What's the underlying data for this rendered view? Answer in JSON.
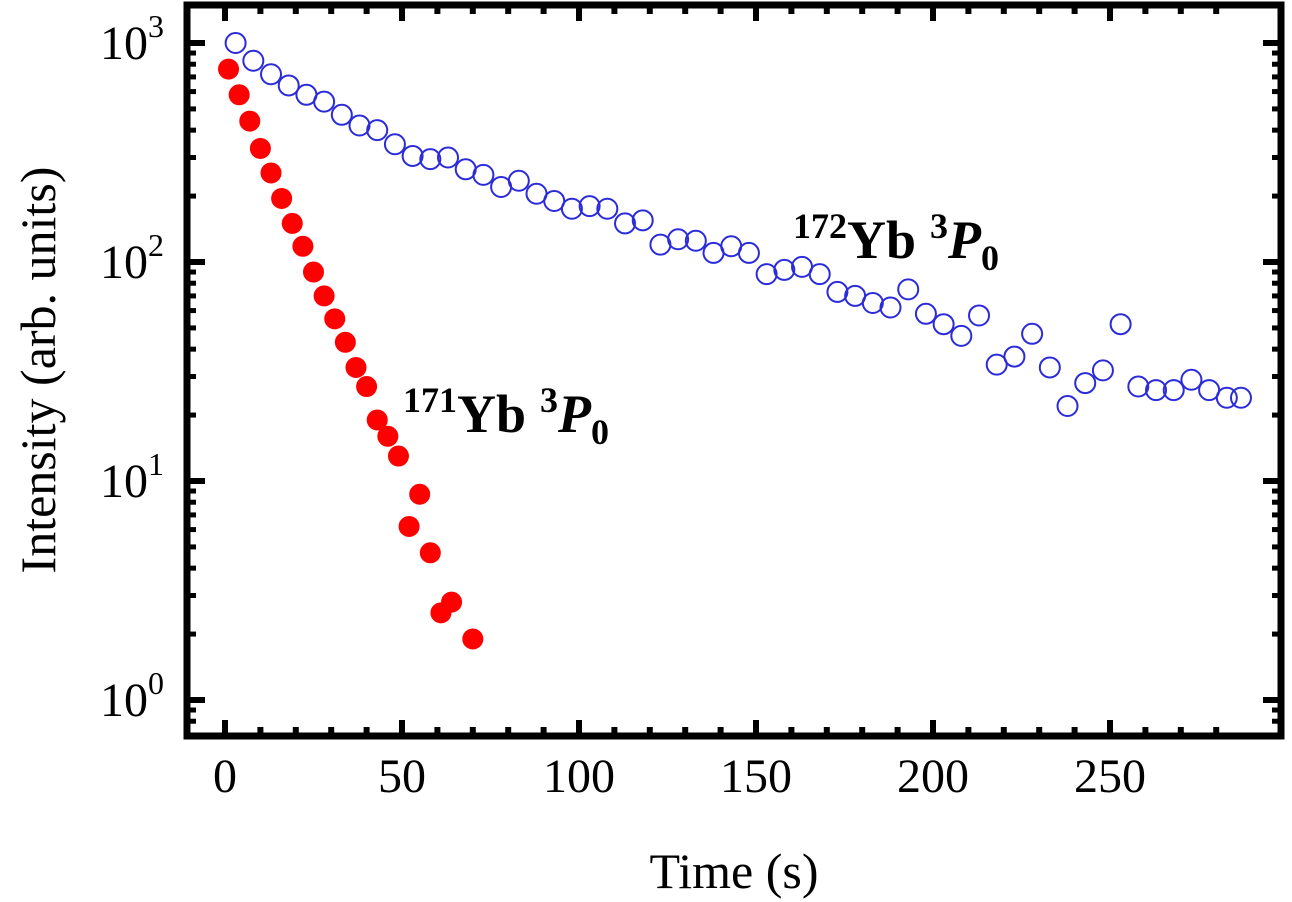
{
  "chart_data": {
    "type": "scatter",
    "title": "",
    "xlabel": "Time (s)",
    "ylabel": "Intensity (arb. units)",
    "xlim": [
      -10,
      290
    ],
    "ylim": [
      0.7,
      1000
    ],
    "yscale": "log",
    "xticks": [
      0,
      50,
      100,
      150,
      200,
      250
    ],
    "yticks": [
      {
        "value": 1,
        "base": "10",
        "exp": "0"
      },
      {
        "value": 10,
        "base": "10",
        "exp": "1"
      },
      {
        "value": 100,
        "base": "10",
        "exp": "2"
      },
      {
        "value": 1000,
        "base": "10",
        "exp": "3"
      }
    ],
    "grid": false,
    "series": [
      {
        "name": "172Yb 3P0",
        "marker": "open-circle",
        "color": "#2b2bd9",
        "points": [
          [
            3,
            1000
          ],
          [
            8,
            830
          ],
          [
            13,
            720
          ],
          [
            18,
            640
          ],
          [
            23,
            580
          ],
          [
            28,
            540
          ],
          [
            33,
            470
          ],
          [
            38,
            420
          ],
          [
            43,
            400
          ],
          [
            48,
            345
          ],
          [
            53,
            305
          ],
          [
            58,
            295
          ],
          [
            63,
            300
          ],
          [
            68,
            265
          ],
          [
            73,
            250
          ],
          [
            78,
            220
          ],
          [
            83,
            235
          ],
          [
            88,
            205
          ],
          [
            93,
            190
          ],
          [
            98,
            175
          ],
          [
            103,
            180
          ],
          [
            108,
            175
          ],
          [
            113,
            150
          ],
          [
            118,
            155
          ],
          [
            123,
            120
          ],
          [
            128,
            127
          ],
          [
            133,
            125
          ],
          [
            138,
            110
          ],
          [
            143,
            118
          ],
          [
            148,
            110
          ],
          [
            153,
            88
          ],
          [
            158,
            92
          ],
          [
            163,
            95
          ],
          [
            168,
            88
          ],
          [
            173,
            73
          ],
          [
            178,
            70
          ],
          [
            183,
            65
          ],
          [
            188,
            62
          ],
          [
            193,
            75
          ],
          [
            198,
            58
          ],
          [
            203,
            52
          ],
          [
            208,
            46
          ],
          [
            213,
            57
          ],
          [
            218,
            34
          ],
          [
            223,
            37
          ],
          [
            228,
            47
          ],
          [
            233,
            33
          ],
          [
            238,
            22
          ],
          [
            243,
            28
          ],
          [
            248,
            32
          ],
          [
            253,
            52
          ],
          [
            258,
            27
          ],
          [
            263,
            26
          ],
          [
            268,
            26
          ],
          [
            273,
            29
          ],
          [
            278,
            26
          ],
          [
            283,
            24
          ],
          [
            287,
            24
          ]
        ]
      },
      {
        "name": "171Yb 3P0",
        "marker": "filled-circle",
        "color": "#ff0000",
        "points": [
          [
            1,
            760
          ],
          [
            4,
            580
          ],
          [
            7,
            440
          ],
          [
            10,
            330
          ],
          [
            13,
            255
          ],
          [
            16,
            195
          ],
          [
            19,
            150
          ],
          [
            22,
            118
          ],
          [
            25,
            90
          ],
          [
            28,
            70
          ],
          [
            31,
            55
          ],
          [
            34,
            43
          ],
          [
            37,
            33
          ],
          [
            40,
            27
          ],
          [
            43,
            19
          ],
          [
            46,
            16
          ],
          [
            49,
            13
          ],
          [
            55,
            8.7
          ],
          [
            52,
            6.2
          ],
          [
            58,
            4.7
          ],
          [
            61,
            2.5
          ],
          [
            64,
            2.8
          ],
          [
            70,
            1.9
          ]
        ]
      }
    ],
    "annotations": [
      {
        "name": "172Yb",
        "mass": "172",
        "element": "Yb",
        "mult": "3",
        "term": "P",
        "sub": "0"
      },
      {
        "name": "171Yb",
        "mass": "171",
        "element": "Yb",
        "mult": "3",
        "term": "P",
        "sub": "0"
      }
    ]
  }
}
